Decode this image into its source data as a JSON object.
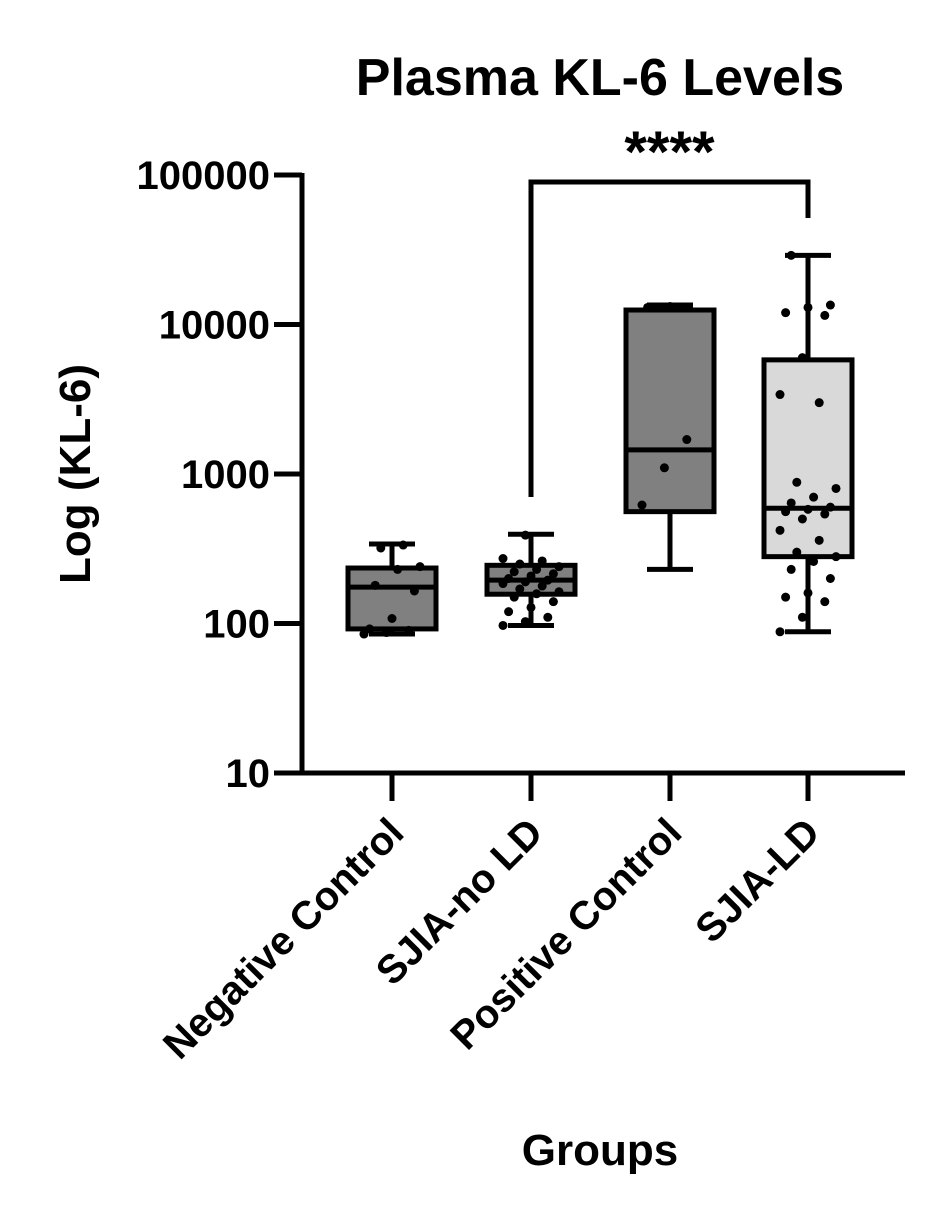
{
  "chart_data": {
    "type": "box",
    "title": "Plasma KL-6 Levels",
    "xlabel": "Groups",
    "ylabel": "Log (KL-6)",
    "yscale": "log",
    "ylim": [
      10,
      100000
    ],
    "yticks": [
      {
        "value": 10,
        "label": "10"
      },
      {
        "value": 100,
        "label": "100"
      },
      {
        "value": 1000,
        "label": "1000"
      },
      {
        "value": 10000,
        "label": "10000"
      },
      {
        "value": 100000,
        "label": "100000"
      }
    ],
    "categories": [
      "Negative Control",
      "SJIA-no LD",
      "Positive Control",
      "SJIA-LD"
    ],
    "groups": [
      {
        "name": "Negative Control",
        "color": "#808080",
        "whisker_low": 85,
        "q1": 92,
        "median": 175,
        "q3": 235,
        "whisker_high": 340,
        "points": [
          85,
          87,
          90,
          92,
          108,
          165,
          180,
          230,
          240,
          320,
          335
        ]
      },
      {
        "name": "SJIA-no LD",
        "color": "#808080",
        "whisker_low": 97,
        "q1": 157,
        "median": 195,
        "q3": 245,
        "whisker_high": 395,
        "points": [
          97,
          103,
          110,
          120,
          128,
          140,
          150,
          158,
          163,
          170,
          178,
          185,
          190,
          195,
          200,
          208,
          215,
          222,
          230,
          240,
          250,
          262,
          272,
          390
        ]
      },
      {
        "name": "Positive Control",
        "color": "#808080",
        "whisker_low": 230,
        "q1": 560,
        "median": 1450,
        "q3": 12500,
        "whisker_high": 13500,
        "points": [
          620,
          1100,
          1700,
          13000,
          13200
        ]
      },
      {
        "name": "SJIA-LD",
        "color": "#d9d9d9",
        "whisker_low": 88,
        "q1": 280,
        "median": 590,
        "q3": 5800,
        "whisker_high": 29000,
        "points": [
          88,
          110,
          140,
          150,
          160,
          200,
          230,
          260,
          280,
          300,
          360,
          420,
          500,
          540,
          560,
          580,
          600,
          640,
          700,
          800,
          880,
          3000,
          3400,
          6000,
          11500,
          12000,
          13000,
          13500,
          29000
        ]
      }
    ],
    "significance": {
      "from": "SJIA-no LD",
      "to": "SJIA-LD",
      "label": "****"
    }
  }
}
